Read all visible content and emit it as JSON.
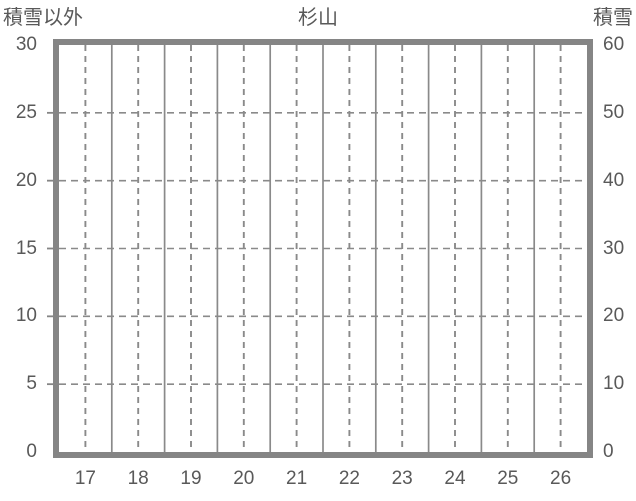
{
  "chart_data": {
    "type": "line",
    "title": "杉山",
    "series": [],
    "note": "plot area is empty — axes and gridlines only, no data series drawn",
    "x_axis": {
      "tick_labels": [
        "17",
        "18",
        "19",
        "20",
        "21",
        "22",
        "23",
        "24",
        "25",
        "26"
      ]
    },
    "left_y_axis": {
      "axis_label": "積雪以外",
      "range": [
        0,
        30
      ],
      "ticks": [
        0,
        5,
        10,
        15,
        20,
        25,
        30
      ]
    },
    "right_y_axis": {
      "axis_label": "積雪",
      "range": [
        0,
        60
      ],
      "ticks": [
        0,
        10,
        20,
        30,
        40,
        50,
        60
      ]
    },
    "grid": {
      "horizontal": "dashed lines at left-axis major ticks",
      "vertical": "solid lines at category boundaries, dashed lines at category centers",
      "legend": "none"
    },
    "colors": {
      "frame": "#858585",
      "gridline": "#8a8a8a",
      "text": "#595959",
      "background": "#ffffff"
    }
  }
}
